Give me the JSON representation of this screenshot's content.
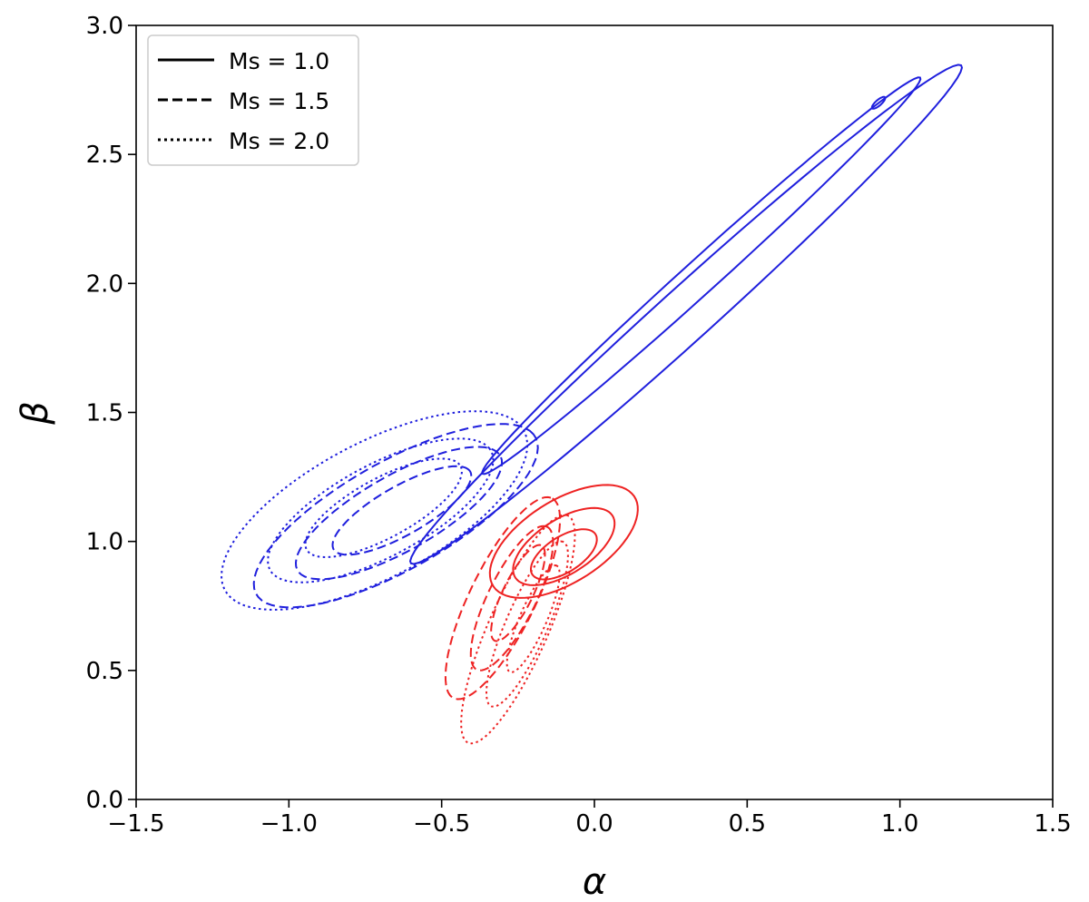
{
  "chart_data": {
    "type": "contour",
    "xlabel": "α",
    "ylabel": "β",
    "xlim": [
      -1.5,
      1.5
    ],
    "ylim": [
      0.0,
      3.0
    ],
    "xticks": [
      -1.5,
      -1.0,
      -0.5,
      0.0,
      0.5,
      1.0,
      1.5
    ],
    "xtick_labels": [
      "−1.5",
      "−1.0",
      "−0.5",
      "0.0",
      "0.5",
      "1.0",
      "1.5"
    ],
    "yticks": [
      0.0,
      0.5,
      1.0,
      1.5,
      2.0,
      2.5,
      3.0
    ],
    "ytick_labels": [
      "0.0",
      "0.5",
      "1.0",
      "1.5",
      "2.0",
      "2.5",
      "3.0"
    ],
    "grid": false,
    "legend": {
      "placement": "top-left",
      "entries": [
        {
          "label": "Ms = 1.0",
          "linestyle": "solid"
        },
        {
          "label": "Ms = 1.5",
          "linestyle": "dashed"
        },
        {
          "label": "Ms = 2.0",
          "linestyle": "dotted"
        }
      ]
    },
    "contour_sets": [
      {
        "color": "#1f1fdd",
        "linestyle": "solid",
        "ms": "Ms = 1.0",
        "contours": [
          {
            "center": [
              0.3,
              1.88
            ],
            "a": 1.32,
            "b": 0.095,
            "angle": 47
          },
          {
            "center": [
              0.35,
              2.03
            ],
            "a": 1.05,
            "b": 0.06,
            "angle": 47
          },
          {
            "center": [
              0.93,
              2.7
            ],
            "a": 0.03,
            "b": 0.01,
            "angle": 47
          }
        ]
      },
      {
        "color": "#1f1fdd",
        "linestyle": "dashed",
        "ms": "Ms = 1.5",
        "contours": [
          {
            "center": [
              -0.65,
              1.1
            ],
            "a": 0.55,
            "b": 0.2,
            "angle": 35
          },
          {
            "center": [
              -0.64,
              1.11
            ],
            "a": 0.4,
            "b": 0.14,
            "angle": 35
          },
          {
            "center": [
              -0.63,
              1.12
            ],
            "a": 0.27,
            "b": 0.09,
            "angle": 35
          }
        ]
      },
      {
        "color": "#1f1fdd",
        "linestyle": "dotted",
        "ms": "Ms = 2.0",
        "contours": [
          {
            "center": [
              -0.72,
              1.12
            ],
            "a": 0.58,
            "b": 0.25,
            "angle": 34
          },
          {
            "center": [
              -0.7,
              1.12
            ],
            "a": 0.43,
            "b": 0.17,
            "angle": 34
          },
          {
            "center": [
              -0.69,
              1.13
            ],
            "a": 0.3,
            "b": 0.11,
            "angle": 34
          }
        ]
      },
      {
        "color": "#ee2222",
        "linestyle": "solid",
        "ms": "Ms = 1.0",
        "contours": [
          {
            "center": [
              -0.1,
              1.0
            ],
            "a": 0.29,
            "b": 0.15,
            "angle": 40
          },
          {
            "center": [
              -0.1,
              0.98
            ],
            "a": 0.2,
            "b": 0.1,
            "angle": 40
          },
          {
            "center": [
              -0.1,
              0.95
            ],
            "a": 0.13,
            "b": 0.065,
            "angle": 40
          }
        ]
      },
      {
        "color": "#ee2222",
        "linestyle": "dashed",
        "ms": "Ms = 1.5",
        "contours": [
          {
            "center": [
              -0.3,
              0.78
            ],
            "a": 0.42,
            "b": 0.11,
            "angle": 68
          },
          {
            "center": [
              -0.27,
              0.78
            ],
            "a": 0.3,
            "b": 0.08,
            "angle": 68
          },
          {
            "center": [
              -0.25,
              0.8
            ],
            "a": 0.2,
            "b": 0.05,
            "angle": 68
          }
        ]
      },
      {
        "color": "#ee2222",
        "linestyle": "dotted",
        "ms": "Ms = 2.0",
        "contours": [
          {
            "center": [
              -0.25,
              0.66
            ],
            "a": 0.47,
            "b": 0.1,
            "angle": 70
          },
          {
            "center": [
              -0.22,
              0.68
            ],
            "a": 0.34,
            "b": 0.07,
            "angle": 70
          },
          {
            "center": [
              -0.2,
              0.7
            ],
            "a": 0.22,
            "b": 0.045,
            "angle": 70
          }
        ]
      }
    ]
  }
}
